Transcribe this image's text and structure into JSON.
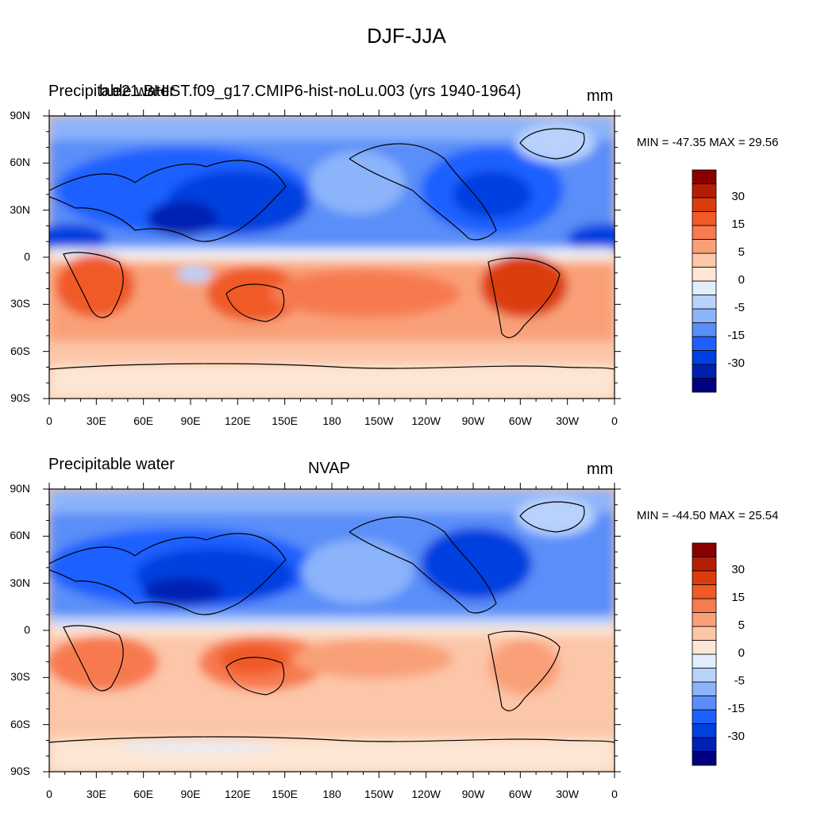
{
  "figure_title": "DJF-JJA",
  "colors": {
    "levels": [
      "#000080",
      "#0020b4",
      "#0040e0",
      "#1e60ff",
      "#5a8ef8",
      "#8cb4fa",
      "#b8d2fc",
      "#e2eefc",
      "#fde6d4",
      "#fcc6a8",
      "#f9a078",
      "#f77a50",
      "#f05a26",
      "#dc3c0c",
      "#b41e04",
      "#8a0000"
    ]
  },
  "panels": [
    {
      "left_title": "Precipitable water",
      "center_title": "b.e21.BHIST.f09_g17.CMIP6-hist-noLu.003 (yrs 1940-1964)",
      "units": "mm",
      "min_max": "MIN = -47.35 MAX =  29.56"
    },
    {
      "left_title": "Precipitable water",
      "center_title": "NVAP",
      "units": "mm",
      "min_max": "MIN = -44.50 MAX =  25.54"
    }
  ],
  "lat_labels": [
    "90N",
    "60N",
    "30N",
    "0",
    "30S",
    "60S",
    "90S"
  ],
  "lon_labels": [
    "0",
    "30E",
    "60E",
    "90E",
    "120E",
    "150E",
    "180",
    "150W",
    "120W",
    "90W",
    "60W",
    "30W",
    "0"
  ],
  "colorbar_labels": [
    "30",
    "15",
    "5",
    "0",
    "-5",
    "-15",
    "-30"
  ]
}
